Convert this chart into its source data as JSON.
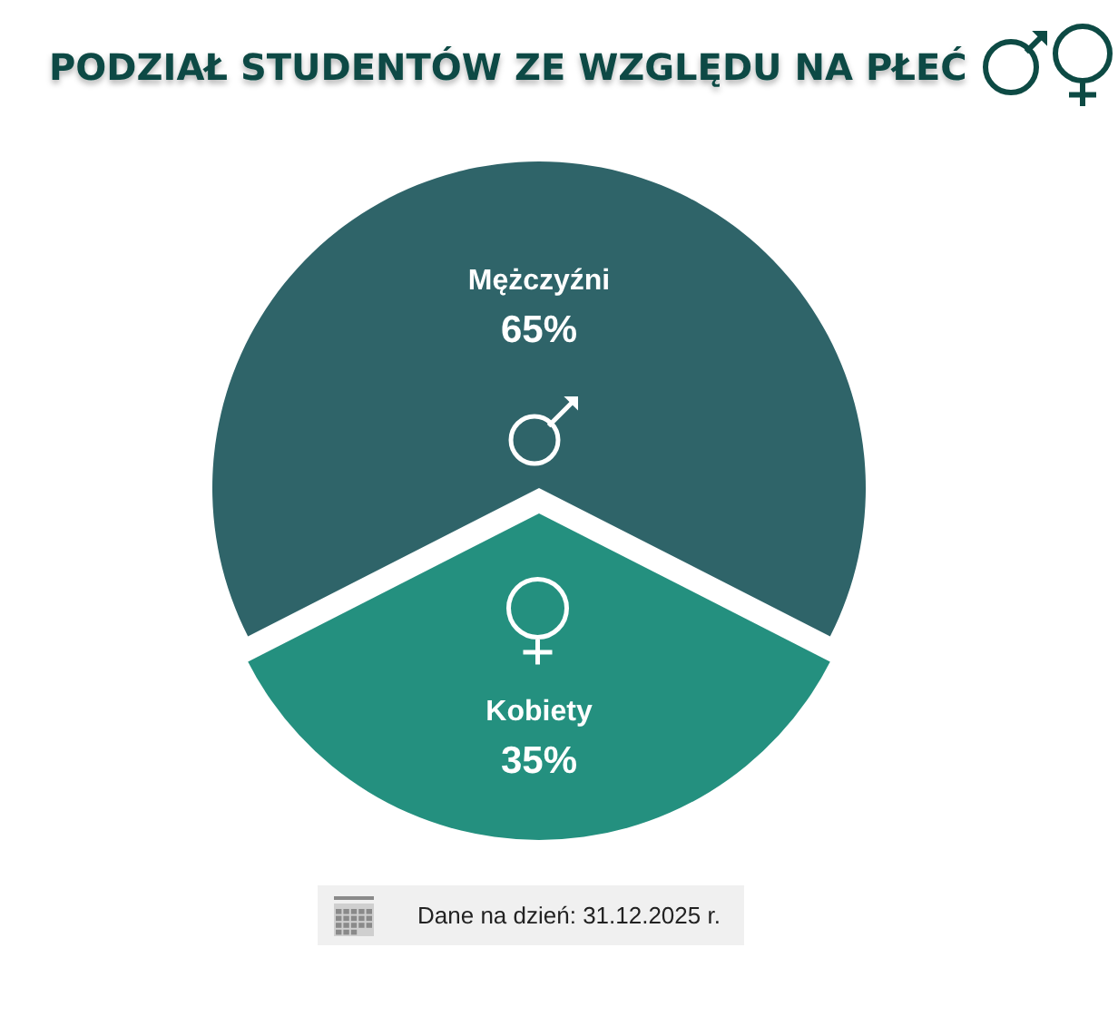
{
  "chart_data": {
    "type": "pie",
    "title": "PODZIAŁ STUDENTÓW ZE WZGLĘDU NA PŁEĆ",
    "categories": [
      "Mężczyźni",
      "Kobiety"
    ],
    "values": [
      65,
      35
    ],
    "colors": [
      "#2f6469",
      "#24907f"
    ],
    "value_labels": [
      "65%",
      "35%"
    ],
    "annotations": [
      "Dane na dzień: 31.12.2025 r."
    ]
  }
}
